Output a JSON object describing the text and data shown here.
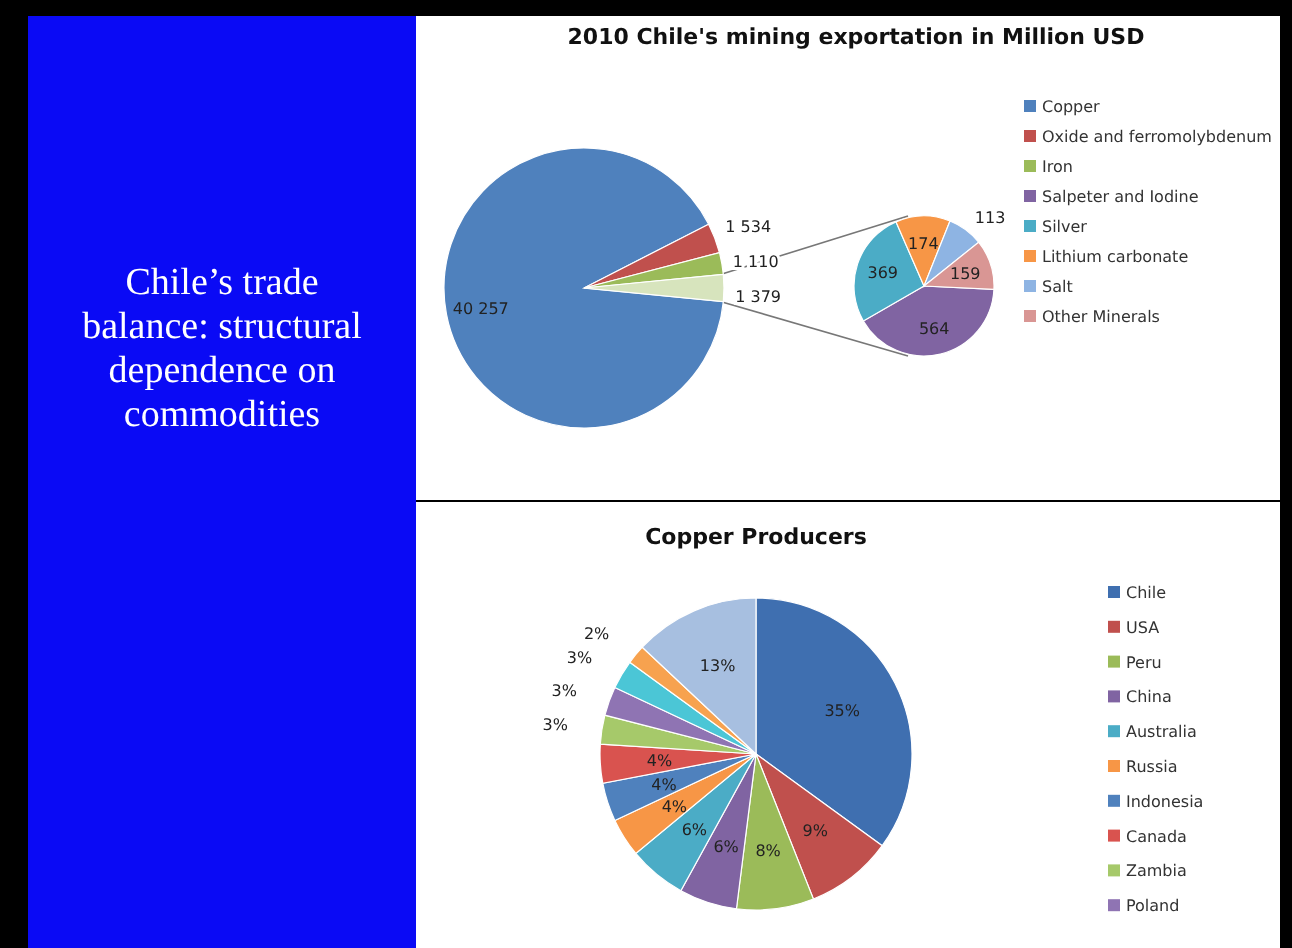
{
  "chart_data": [
    {
      "type": "other",
      "title": "Chile’s trade balance: structural dependence on commodities"
    },
    {
      "type": "pie",
      "title": "2010 Chile's mining exportation in Million USD",
      "categories": [
        "Copper",
        "Oxide and ferromolybdenum",
        "Iron",
        null
      ],
      "values": [
        40257,
        1534,
        1110,
        1379
      ],
      "value_labels": [
        "40 257",
        "1 534",
        "1 110",
        "1 379"
      ],
      "colors": [
        "#4f81bd",
        "#c0504d",
        "#9bbb59",
        "#d7e4bd"
      ],
      "legend": "right"
    },
    {
      "type": "pie",
      "categories": [
        "Salpeter and Iodine",
        "Silver",
        "Lithium carbonate",
        "Salt",
        "Other Minerals"
      ],
      "values": [
        564,
        369,
        174,
        113,
        159
      ],
      "data_labels": true,
      "colors": [
        "#8064a2",
        "#4bacc6",
        "#f79646",
        "#8eb4e3",
        "#d99694"
      ],
      "legend": "right"
    },
    {
      "type": "pie",
      "title": "Copper Producers",
      "categories": [
        "Chile",
        "USA",
        "Peru",
        "China",
        "Australia",
        "Russia",
        "Indonesia",
        "Canada",
        "Zambia",
        "Poland",
        null,
        null,
        null
      ],
      "values": [
        35,
        9,
        8,
        6,
        6,
        4,
        4,
        4,
        3,
        3,
        3,
        2,
        13
      ],
      "value_labels": [
        "35%",
        "9%",
        "8%",
        "6%",
        "6%",
        "4%",
        "4%",
        "4%",
        "3%",
        "3%",
        "3%",
        "2%",
        "13%"
      ],
      "colors": [
        "#3f6fb0",
        "#c0504d",
        "#9bbb59",
        "#8064a2",
        "#4bacc6",
        "#f79646",
        "#4f81bd",
        "#d9534f",
        "#a6c96a",
        "#8f74b3",
        "#4bc6d6",
        "#f7a24f",
        "#a7bfe0"
      ],
      "legend": "right"
    }
  ]
}
